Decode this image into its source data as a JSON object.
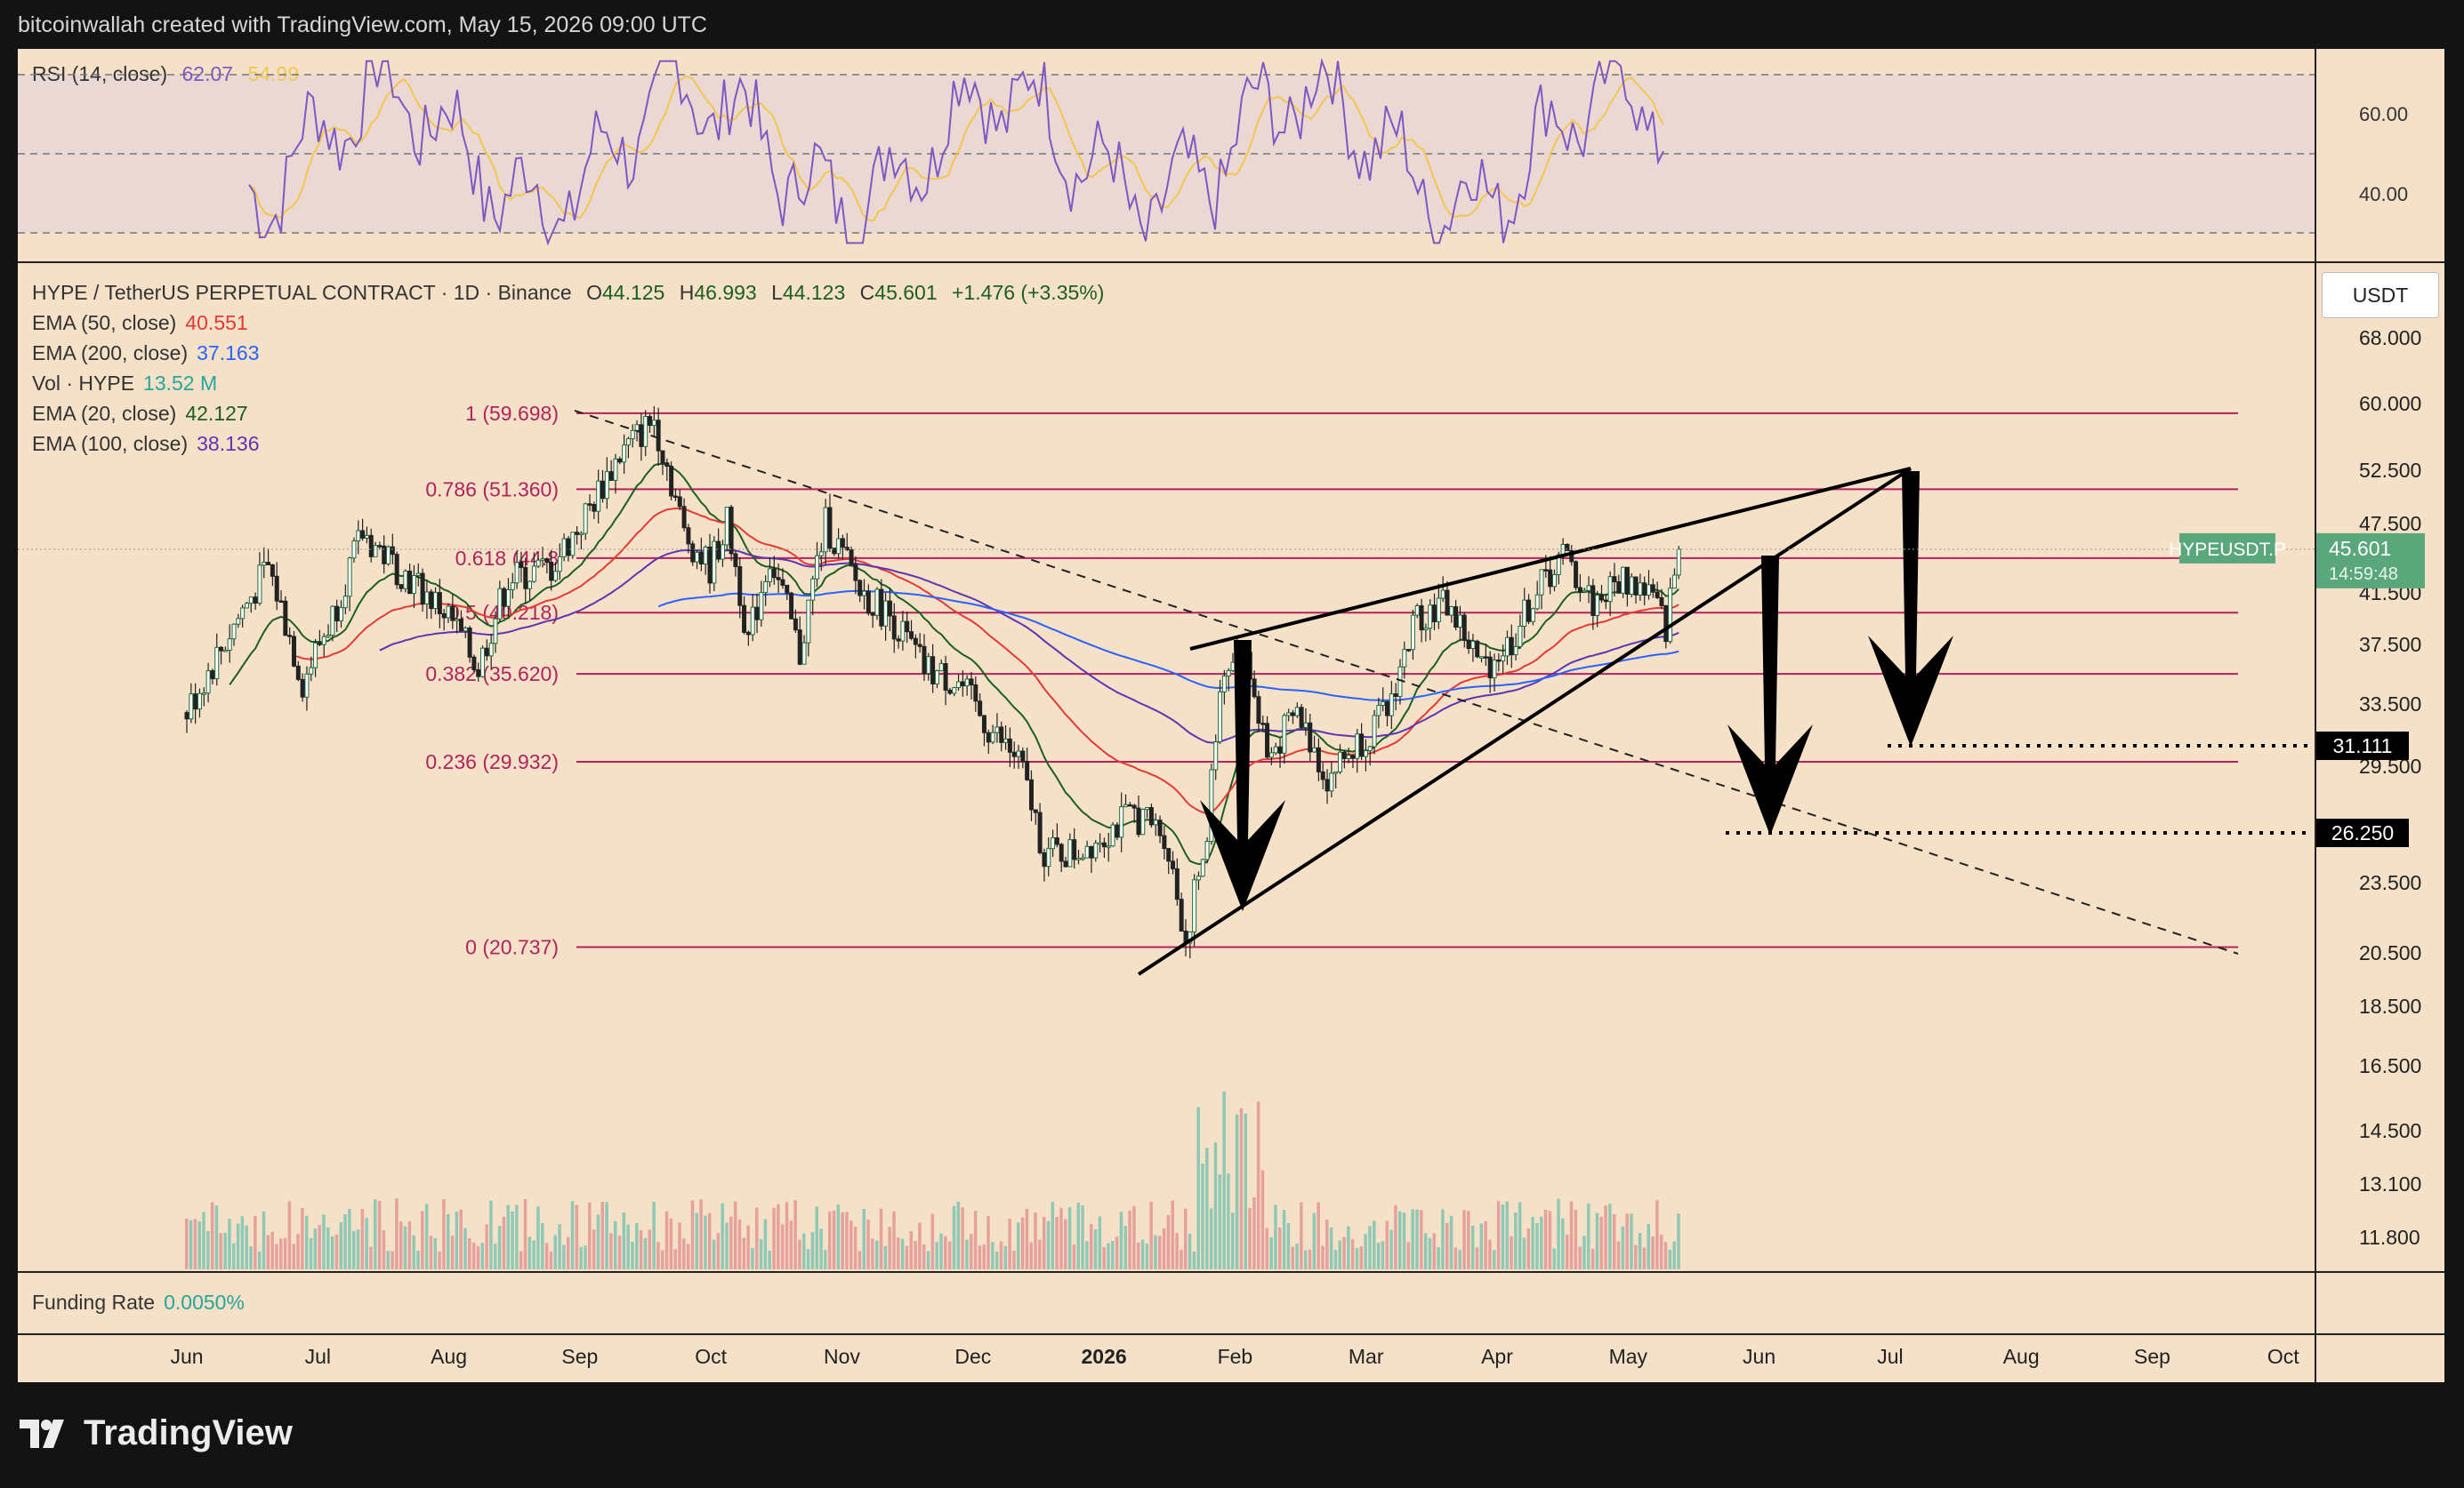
{
  "header": "bitcoinwallah created with TradingView.com, May 15, 2026 09:00 UTC",
  "brand": "TradingView",
  "rsi": {
    "label": "RSI (14, close)",
    "value": "62.07",
    "ma_value": "54.99",
    "ticks": [
      "60.00",
      "40.00"
    ],
    "color": "#7e57c2",
    "ma_color": "#f5c64b"
  },
  "main_legend": {
    "title": "HYPE / TetherUS PERPETUAL CONTRACT · 1D · Binance",
    "ohlc": [
      {
        "k": "O",
        "v": "44.125"
      },
      {
        "k": "H",
        "v": "46.993"
      },
      {
        "k": "L",
        "v": "44.123"
      },
      {
        "k": "C",
        "v": "45.601"
      }
    ],
    "change": "+1.476 (+3.35%)",
    "indicators": [
      {
        "name": "EMA (50, close)",
        "value": "40.551",
        "color": "#e53935"
      },
      {
        "name": "EMA (200, close)",
        "value": "37.163",
        "color": "#2962ff"
      },
      {
        "name": "Vol · HYPE",
        "value": "13.52 M",
        "color": "#26a69a"
      },
      {
        "name": "EMA (20, close)",
        "value": "42.127",
        "color": "#1b5e20"
      },
      {
        "name": "EMA (100, close)",
        "value": "38.136",
        "color": "#5e35b1"
      }
    ]
  },
  "currency_button": "USDT",
  "price_label": {
    "symbol": "HYPEUSDT.P",
    "price": "45.601",
    "countdown": "14:59:48",
    "color": "#5aa77c"
  },
  "target_labels": [
    "31.111",
    "26.250"
  ],
  "funding": {
    "label": "Funding Rate",
    "value": "0.0050%"
  },
  "x_axis": [
    "Jun",
    "Jul",
    "Aug",
    "Sep",
    "Oct",
    "Nov",
    "Dec",
    "2026",
    "Feb",
    "Mar",
    "Apr",
    "May",
    "Jun",
    "Jul",
    "Aug",
    "Sep",
    "Oct"
  ],
  "chart_data": {
    "type": "candlestick",
    "y_axis_ticks": [
      "68.000",
      "60.000",
      "52.500",
      "47.500",
      "41.500",
      "37.500",
      "33.500",
      "29.500",
      "23.500",
      "20.500",
      "18.500",
      "16.500",
      "14.500",
      "13.100",
      "11.800"
    ],
    "fib_levels": [
      {
        "label": "1 (59.698)",
        "value": 59.698
      },
      {
        "label": "0.786 (51.360)",
        "value": 51.36
      },
      {
        "label": "0.618 (44.8",
        "value": 44.8
      },
      {
        "label": "0.5 (40.218)",
        "value": 40.218
      },
      {
        "label": "0.382 (35.620)",
        "value": 35.62
      },
      {
        "label": "0.236 (29.932)",
        "value": 29.932
      },
      {
        "label": "0 (20.737)",
        "value": 20.737
      }
    ],
    "close_path": [
      [
        "2025-06-01",
        33
      ],
      [
        "2025-06-10",
        38
      ],
      [
        "2025-06-20",
        44
      ],
      [
        "2025-06-28",
        35
      ],
      [
        "2025-07-05",
        40
      ],
      [
        "2025-07-12",
        47
      ],
      [
        "2025-07-20",
        44
      ],
      [
        "2025-08-01",
        40
      ],
      [
        "2025-08-08",
        36
      ],
      [
        "2025-08-15",
        43
      ],
      [
        "2025-08-25",
        44
      ],
      [
        "2025-09-01",
        48
      ],
      [
        "2025-09-10",
        55
      ],
      [
        "2025-09-18",
        59
      ],
      [
        "2025-09-25",
        47
      ],
      [
        "2025-10-01",
        44
      ],
      [
        "2025-10-05",
        48
      ],
      [
        "2025-10-10",
        38
      ],
      [
        "2025-10-15",
        45
      ],
      [
        "2025-10-22",
        37
      ],
      [
        "2025-10-28",
        48
      ],
      [
        "2025-11-05",
        42
      ],
      [
        "2025-11-12",
        40
      ],
      [
        "2025-11-20",
        36
      ],
      [
        "2025-11-28",
        35
      ],
      [
        "2025-12-05",
        32
      ],
      [
        "2025-12-12",
        30
      ],
      [
        "2025-12-18",
        25
      ],
      [
        "2025-12-25",
        25
      ],
      [
        "2026-01-01",
        26
      ],
      [
        "2026-01-08",
        27
      ],
      [
        "2026-01-15",
        26
      ],
      [
        "2026-01-20",
        21
      ],
      [
        "2026-01-25",
        26
      ],
      [
        "2026-01-28",
        35
      ],
      [
        "2026-02-02",
        38
      ],
      [
        "2026-02-08",
        30
      ],
      [
        "2026-02-15",
        33
      ],
      [
        "2026-02-22",
        29
      ],
      [
        "2026-03-01",
        31
      ],
      [
        "2026-03-08",
        33
      ],
      [
        "2026-03-15",
        40
      ],
      [
        "2026-03-22",
        41
      ],
      [
        "2026-03-30",
        36
      ],
      [
        "2026-04-06",
        38
      ],
      [
        "2026-04-12",
        42
      ],
      [
        "2026-04-18",
        45
      ],
      [
        "2026-04-25",
        41
      ],
      [
        "2026-05-02",
        43
      ],
      [
        "2026-05-08",
        42
      ],
      [
        "2026-05-12",
        39
      ],
      [
        "2026-05-15",
        45.601
      ]
    ],
    "pattern": "rising wedge with bearish breakdown targets",
    "targets": [
      31.111,
      26.25
    ]
  }
}
